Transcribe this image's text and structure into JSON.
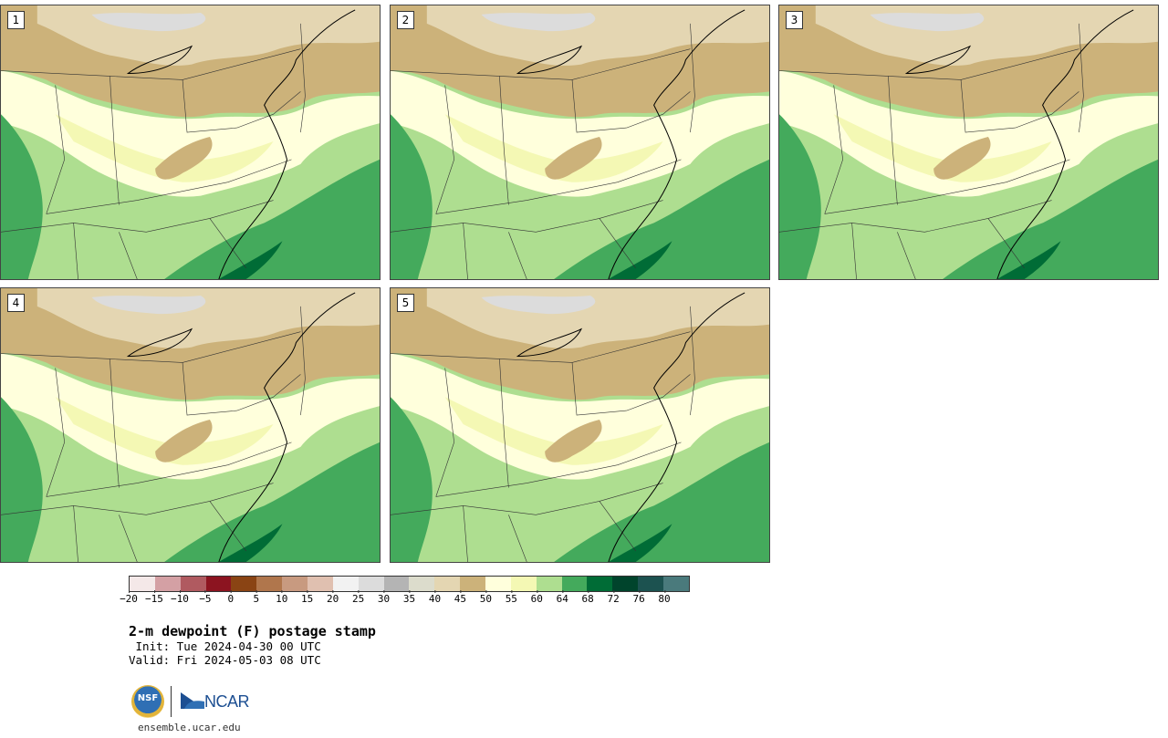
{
  "panels": [
    {
      "label": "1"
    },
    {
      "label": "2"
    },
    {
      "label": "3"
    },
    {
      "label": "4"
    },
    {
      "label": "5"
    }
  ],
  "colorbar": {
    "colors": [
      "#f4e8e8",
      "#d4a0a4",
      "#b05a60",
      "#8c1420",
      "#8a4414",
      "#b0764c",
      "#c89a80",
      "#e0c0b0",
      "#f2f2f2",
      "#dcdcdc",
      "#b4b4b4",
      "#dcdccc",
      "#e4d6b2",
      "#ccb27a",
      "#ffffdc",
      "#f4f8b4",
      "#aede90",
      "#44aa5c",
      "#006c36",
      "#00442c",
      "#1c5250",
      "#4a7a7c"
    ],
    "ticks": [
      "−20",
      "−15",
      "−10",
      "−5",
      "0",
      "5",
      "10",
      "15",
      "20",
      "25",
      "30",
      "35",
      "40",
      "45",
      "50",
      "55",
      "60",
      "64",
      "68",
      "72",
      "76",
      "80"
    ]
  },
  "title": "2-m dewpoint (F) postage stamp",
  "init": " Init: Tue 2024-04-30 00 UTC",
  "valid": "Valid: Fri 2024-05-03 08 UTC",
  "logos": {
    "nsf": "NSF",
    "ncar": "NCAR"
  },
  "footer": "ensemble.ucar.edu"
}
